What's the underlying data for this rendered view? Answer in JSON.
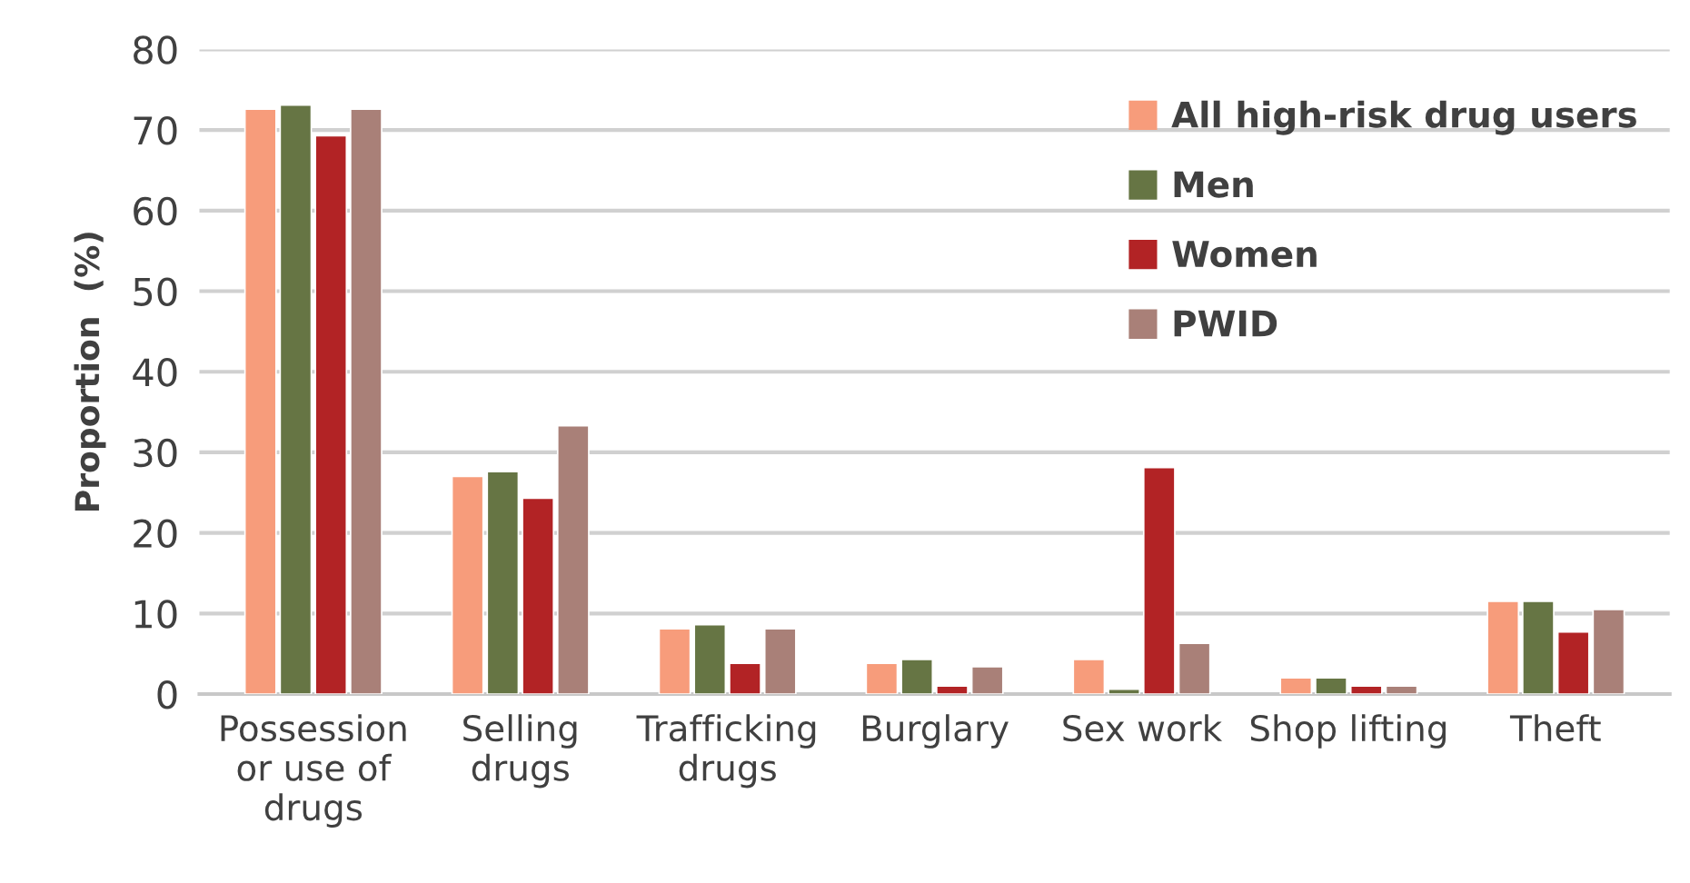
{
  "chart_data": {
    "type": "bar",
    "ylabel": "Proportion  (%)",
    "categories": [
      "Possession\nor use of\ndrugs",
      "Selling\ndrugs",
      "Trafficking\ndrugs",
      "Burglary",
      "Sex work",
      "Shop lifting",
      "Theft"
    ],
    "series": [
      {
        "name": "All high-risk drug users",
        "color": "#f79c7b",
        "values": [
          72.6,
          27.0,
          8.1,
          3.8,
          4.3,
          2.0,
          11.5
        ]
      },
      {
        "name": "Men",
        "color": "#667544",
        "values": [
          73.1,
          27.6,
          8.6,
          4.3,
          0.6,
          2.0,
          11.5
        ]
      },
      {
        "name": "Women",
        "color": "#b22325",
        "values": [
          69.3,
          24.3,
          3.8,
          1.0,
          28.1,
          1.0,
          7.7
        ]
      },
      {
        "name": "PWID",
        "color": "#a98078",
        "values": [
          72.6,
          33.3,
          8.1,
          3.4,
          6.3,
          1.0,
          10.5
        ]
      }
    ],
    "ylim": [
      0,
      80
    ],
    "yticks": [
      0,
      10,
      20,
      30,
      40,
      50,
      60,
      70,
      80
    ],
    "grid": "y",
    "legend": "top right"
  }
}
